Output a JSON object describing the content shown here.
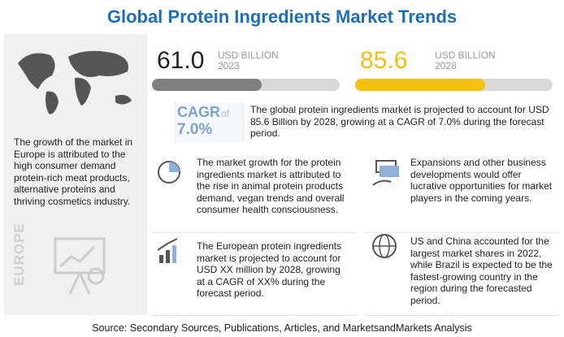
{
  "header": {
    "title": "Global Protein Ingredients Market Trends"
  },
  "left_panel": {
    "text": "The growth of the market in Europe is attributed to the high consumer demand protein-rich meat products, alternative proteins and thriving cosmetics industry.",
    "region": "EUROPE"
  },
  "stats": [
    {
      "value": "61.0",
      "unit": "USD BILLION",
      "year": "2023"
    },
    {
      "value": "85.6",
      "unit": "USD BILLION",
      "year": "2028"
    }
  ],
  "cagr": {
    "label": "CAGR",
    "of": "of",
    "value": "7.0%",
    "text": "The global protein ingredients market is projected to account for USD 85.6 Billion by 2028, growing at a CAGR of 7.0% during the forecast period."
  },
  "points": [
    "The market growth for the protein ingredients market is attributed to the rise in animal protein products demand, vegan trends and overall consumer health consciousness.",
    "Expansions and other business developments would offer lucrative opportunities for market players in the coming years.",
    "The European protein ingredients market is projected to account for USD XX million by 2028, growing at a CAGR of XX% during the forecast period.",
    "US and China accounted for the largest market shares in 2022, while Brazil is expected to be the fastest-growing country in the region during the forecasted period."
  ],
  "footer": {
    "source": "Source: Secondary Sources, Publications, Articles, and MarketsandMarkets Analysis"
  }
}
